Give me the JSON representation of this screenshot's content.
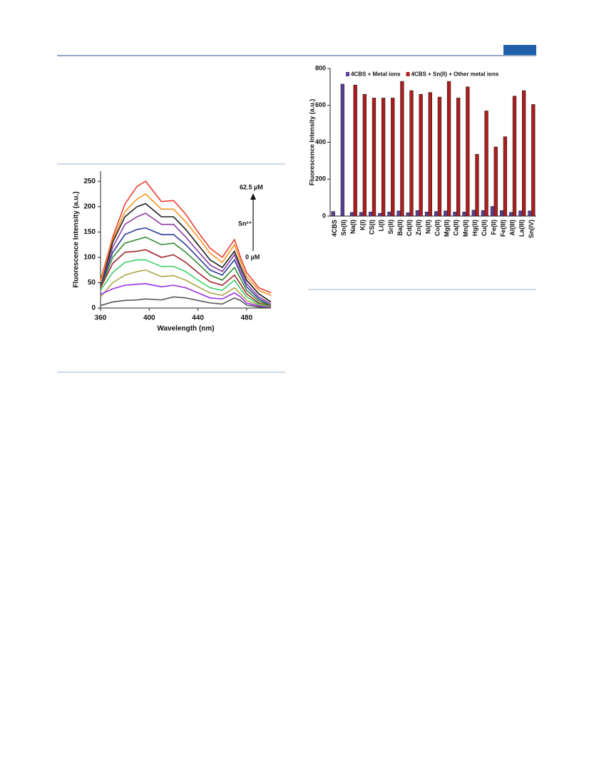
{
  "chart_data": [
    {
      "type": "line",
      "x_label": "Wavelength (nm)",
      "y_label": "Fluorescence Intensity (a.u.)",
      "x": [
        360,
        370,
        380,
        390,
        397,
        410,
        420,
        430,
        440,
        450,
        460,
        470,
        475,
        480,
        490,
        500
      ],
      "xlim": [
        360,
        500
      ],
      "xticks": [
        360,
        400,
        440,
        480
      ],
      "ylim": [
        0,
        270
      ],
      "yticks": [
        0,
        50,
        100,
        150,
        200,
        250
      ],
      "annotations": [
        "62.5 µM",
        "Sn²⁺",
        "0 µM"
      ],
      "series": [
        {
          "color": "#ee3b2e",
          "values": [
            55,
            140,
            205,
            240,
            250,
            210,
            212,
            185,
            150,
            118,
            100,
            135,
            100,
            70,
            40,
            30
          ]
        },
        {
          "color": "#f7941d",
          "values": [
            52,
            135,
            190,
            215,
            225,
            195,
            195,
            170,
            140,
            108,
            90,
            125,
            92,
            62,
            35,
            25
          ]
        },
        {
          "color": "#1a1a1a",
          "values": [
            42,
            130,
            180,
            200,
            206,
            180,
            180,
            155,
            125,
            95,
            80,
            112,
            82,
            55,
            28,
            12
          ]
        },
        {
          "color": "#8e3d9e",
          "values": [
            42,
            120,
            165,
            180,
            187,
            165,
            165,
            140,
            112,
            85,
            72,
            105,
            75,
            48,
            22,
            8
          ]
        },
        {
          "color": "#2b3a9a",
          "values": [
            42,
            110,
            145,
            155,
            158,
            145,
            145,
            125,
            100,
            75,
            65,
            95,
            68,
            42,
            18,
            5
          ]
        },
        {
          "color": "#2e8b2e",
          "values": [
            40,
            100,
            128,
            135,
            140,
            125,
            128,
            110,
            88,
            65,
            55,
            80,
            58,
            35,
            14,
            5
          ]
        },
        {
          "color": "#a3222a",
          "values": [
            40,
            88,
            110,
            112,
            115,
            100,
            105,
            90,
            70,
            52,
            45,
            65,
            47,
            28,
            10,
            4
          ]
        },
        {
          "color": "#3ecf6a",
          "values": [
            35,
            70,
            90,
            95,
            95,
            82,
            82,
            72,
            55,
            40,
            35,
            55,
            38,
            22,
            8,
            3
          ]
        },
        {
          "color": "#a8a84a",
          "values": [
            22,
            50,
            65,
            72,
            75,
            62,
            64,
            55,
            42,
            30,
            25,
            40,
            28,
            15,
            6,
            2
          ]
        },
        {
          "color": "#9b30e8",
          "values": [
            27,
            38,
            45,
            47,
            48,
            42,
            45,
            40,
            30,
            20,
            18,
            30,
            22,
            10,
            4,
            1
          ]
        },
        {
          "color": "#555555",
          "values": [
            5,
            12,
            15,
            16,
            18,
            16,
            22,
            20,
            15,
            10,
            8,
            20,
            15,
            6,
            2,
            0
          ]
        }
      ]
    },
    {
      "type": "bar",
      "y_label": "Fluorescence Intensity (a.u.)",
      "categories": [
        "4CBS",
        "Sn(II)",
        "Na(I)",
        "K(I)",
        "CS(I)",
        "Li(I)",
        "Sr(II)",
        "Ba(II)",
        "Cd(II)",
        "Zn(II)",
        "Ni(II)",
        "Co(II)",
        "Mg(II)",
        "Ca(II)",
        "Mn(II)",
        "Hg(II)",
        "Cu(II)",
        "Fe(II)",
        "Fe(III)",
        "Al(III)",
        "La(III)",
        "Sn(IV)"
      ],
      "ylim": [
        0,
        800
      ],
      "yticks": [
        0,
        200,
        400,
        600,
        800
      ],
      "series": [
        {
          "name": "4CBS + Metal ions",
          "color": "#5b3f98",
          "values": [
            25,
            715,
            20,
            20,
            22,
            15,
            22,
            28,
            18,
            30,
            22,
            25,
            28,
            22,
            22,
            32,
            30,
            52,
            30,
            20,
            28,
            28
          ]
        },
        {
          "name": "4CBS + Sn(II) + Other metal ions",
          "color": "#b01c1c",
          "values": [
            null,
            null,
            710,
            660,
            640,
            640,
            640,
            730,
            680,
            660,
            670,
            645,
            730,
            640,
            700,
            335,
            570,
            375,
            430,
            650,
            680,
            605
          ]
        }
      ]
    }
  ]
}
